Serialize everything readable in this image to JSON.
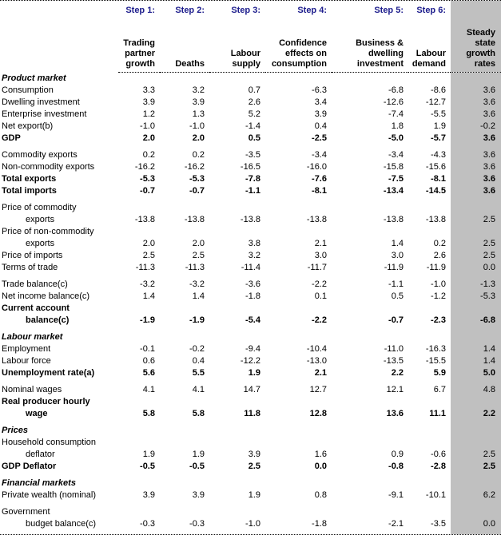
{
  "colors": {
    "step_label": "#1c1c8c",
    "steady_column_bg": "#c0c0c0",
    "text": "#000000",
    "background": "#ffffff"
  },
  "table": {
    "steps": [
      "Step 1:",
      "Step 2:",
      "Step 3:",
      "Step 4:",
      "Step 5:",
      "Step 6:"
    ],
    "column_headers": [
      "Trading\npartner\ngrowth",
      "Deaths",
      "Labour\nsupply",
      "Confidence\neffects on\nconsumption",
      "Business &\ndwelling\ninvestment",
      "Labour\ndemand",
      "Steady\nstate\ngrowth\nrates"
    ],
    "rows": [
      {
        "type": "section",
        "label": "Product market"
      },
      {
        "type": "data",
        "label": "Consumption",
        "values": [
          "3.3",
          "3.2",
          "0.7",
          "-6.3",
          "-6.8",
          "-8.6",
          "3.6"
        ]
      },
      {
        "type": "data",
        "label": "Dwelling investment",
        "values": [
          "3.9",
          "3.9",
          "2.6",
          "3.4",
          "-12.6",
          "-12.7",
          "3.6"
        ]
      },
      {
        "type": "data",
        "label": "Enterprise investment",
        "values": [
          "1.2",
          "1.3",
          "5.2",
          "3.9",
          "-7.4",
          "-5.5",
          "3.6"
        ]
      },
      {
        "type": "data",
        "label": "Net export(b)",
        "values": [
          "-1.0",
          "-1.0",
          "-1.4",
          "0.4",
          "1.8",
          "1.9",
          "-0.2"
        ]
      },
      {
        "type": "data",
        "bold": true,
        "label": "GDP",
        "values": [
          "2.0",
          "2.0",
          "0.5",
          "-2.5",
          "-5.0",
          "-5.7",
          "3.6"
        ]
      },
      {
        "type": "gap"
      },
      {
        "type": "data",
        "label": "Commodity exports",
        "values": [
          "0.2",
          "0.2",
          "-3.5",
          "-3.4",
          "-3.4",
          "-4.3",
          "3.6"
        ]
      },
      {
        "type": "data",
        "label": "Non-commodity exports",
        "values": [
          "-16.2",
          "-16.2",
          "-16.5",
          "-16.0",
          "-15.8",
          "-15.6",
          "3.6"
        ]
      },
      {
        "type": "data",
        "bold": true,
        "label": "Total exports",
        "values": [
          "-5.3",
          "-5.3",
          "-7.8",
          "-7.6",
          "-7.5",
          "-8.1",
          "3.6"
        ]
      },
      {
        "type": "data",
        "bold": true,
        "label": "Total imports",
        "values": [
          "-0.7",
          "-0.7",
          "-1.1",
          "-8.1",
          "-13.4",
          "-14.5",
          "3.6"
        ]
      },
      {
        "type": "gap"
      },
      {
        "type": "data",
        "label": "Price of commodity",
        "label2": "exports",
        "values": [
          "-13.8",
          "-13.8",
          "-13.8",
          "-13.8",
          "-13.8",
          "-13.8",
          "2.5"
        ]
      },
      {
        "type": "data",
        "label": "Price of non-commodity",
        "label2": "exports",
        "values": [
          "2.0",
          "2.0",
          "3.8",
          "2.1",
          "1.4",
          "0.2",
          "2.5"
        ]
      },
      {
        "type": "data",
        "label": "Price of imports",
        "values": [
          "2.5",
          "2.5",
          "3.2",
          "3.0",
          "3.0",
          "2.6",
          "2.5"
        ]
      },
      {
        "type": "data",
        "label": "Terms of trade",
        "values": [
          "-11.3",
          "-11.3",
          "-11.4",
          "-11.7",
          "-11.9",
          "-11.9",
          "0.0"
        ]
      },
      {
        "type": "gap"
      },
      {
        "type": "data",
        "label": "Trade balance(c)",
        "values": [
          "-3.2",
          "-3.2",
          "-3.6",
          "-2.2",
          "-1.1",
          "-1.0",
          "-1.3"
        ]
      },
      {
        "type": "data",
        "label": "Net income balance(c)",
        "values": [
          "1.4",
          "1.4",
          "-1.8",
          "0.1",
          "0.5",
          "-1.2",
          "-5.3"
        ]
      },
      {
        "type": "data",
        "bold": true,
        "label": "Current account",
        "label2": "balance(c)",
        "values": [
          "-1.9",
          "-1.9",
          "-5.4",
          "-2.2",
          "-0.7",
          "-2.3",
          "-6.8"
        ]
      },
      {
        "type": "gap"
      },
      {
        "type": "section",
        "label": "Labour market"
      },
      {
        "type": "data",
        "label": "Employment",
        "values": [
          "-0.1",
          "-0.2",
          "-9.4",
          "-10.4",
          "-11.0",
          "-16.3",
          "1.4"
        ]
      },
      {
        "type": "data",
        "label": "Labour force",
        "values": [
          "0.6",
          "0.4",
          "-12.2",
          "-13.0",
          "-13.5",
          "-15.5",
          "1.4"
        ]
      },
      {
        "type": "data",
        "bold": true,
        "label": "Unemployment rate(a)",
        "values": [
          "5.6",
          "5.5",
          "1.9",
          "2.1",
          "2.2",
          "5.9",
          "5.0"
        ]
      },
      {
        "type": "gap"
      },
      {
        "type": "data",
        "label": "Nominal wages",
        "values": [
          "4.1",
          "4.1",
          "14.7",
          "12.7",
          "12.1",
          "6.7",
          "4.8"
        ]
      },
      {
        "type": "data",
        "bold": true,
        "label": "Real producer hourly",
        "label2": "wage",
        "values": [
          "5.8",
          "5.8",
          "11.8",
          "12.8",
          "13.6",
          "11.1",
          "2.2"
        ]
      },
      {
        "type": "gap"
      },
      {
        "type": "section",
        "label": "Prices"
      },
      {
        "type": "data",
        "label": "Household consumption",
        "label2": "deflator",
        "values": [
          "1.9",
          "1.9",
          "3.9",
          "1.6",
          "0.9",
          "-0.6",
          "2.5"
        ]
      },
      {
        "type": "data",
        "bold": true,
        "label": "GDP Deflator",
        "values": [
          "-0.5",
          "-0.5",
          "2.5",
          "0.0",
          "-0.8",
          "-2.8",
          "2.5"
        ]
      },
      {
        "type": "gap"
      },
      {
        "type": "section",
        "label": "Financial markets"
      },
      {
        "type": "data",
        "label": "Private wealth (nominal)",
        "values": [
          "3.9",
          "3.9",
          "1.9",
          "0.8",
          "-9.1",
          "-10.1",
          "6.2"
        ]
      },
      {
        "type": "gap"
      },
      {
        "type": "data",
        "label": "Government",
        "label2": "budget balance(c)",
        "values": [
          "-0.3",
          "-0.3",
          "-1.0",
          "-1.8",
          "-2.1",
          "-3.5",
          "0.0"
        ]
      }
    ]
  }
}
